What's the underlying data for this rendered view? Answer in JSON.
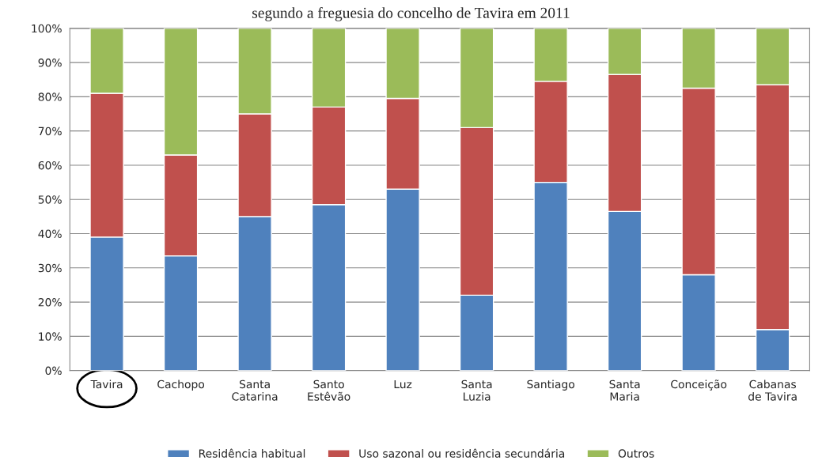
{
  "chart_data": {
    "type": "bar",
    "stacked": true,
    "title": "segundo a freguesia do concelho de Tavira em 2011",
    "categories": [
      "Tavira",
      "Cachopo",
      "Santa\nCatarina",
      "Santo\nEstêvão",
      "Luz",
      "Santa\nLuzia",
      "Santiago",
      "Santa\nMaria",
      "Conceição",
      "Cabanas\nde Tavira"
    ],
    "series": [
      {
        "name": "Residência habitual",
        "color": "#4f81bd",
        "values": [
          39,
          33.5,
          45,
          48.5,
          53,
          22,
          55,
          46.5,
          28,
          12
        ]
      },
      {
        "name": "Uso sazonal ou residência secundária",
        "color": "#c0504d",
        "values": [
          42,
          29.5,
          30,
          28.5,
          26.5,
          49,
          29.5,
          40,
          54.5,
          71.5
        ]
      },
      {
        "name": "Outros",
        "color": "#9bbb59",
        "values": [
          19,
          37,
          25,
          23,
          20.5,
          29,
          15.5,
          13.5,
          17.5,
          16.5
        ]
      }
    ],
    "ylim": [
      0,
      100
    ],
    "yticks": [
      {
        "value": 0,
        "label": "0%"
      },
      {
        "value": 10,
        "label": "10%"
      },
      {
        "value": 20,
        "label": "20%"
      },
      {
        "value": 30,
        "label": "30%"
      },
      {
        "value": 40,
        "label": "40%"
      },
      {
        "value": 50,
        "label": "50%"
      },
      {
        "value": 60,
        "label": "60%"
      },
      {
        "value": 70,
        "label": "70%"
      },
      {
        "value": 80,
        "label": "80%"
      },
      {
        "value": 90,
        "label": "90%"
      },
      {
        "value": 100,
        "label": "100%"
      }
    ],
    "grid": "y",
    "legend": "bottom"
  }
}
